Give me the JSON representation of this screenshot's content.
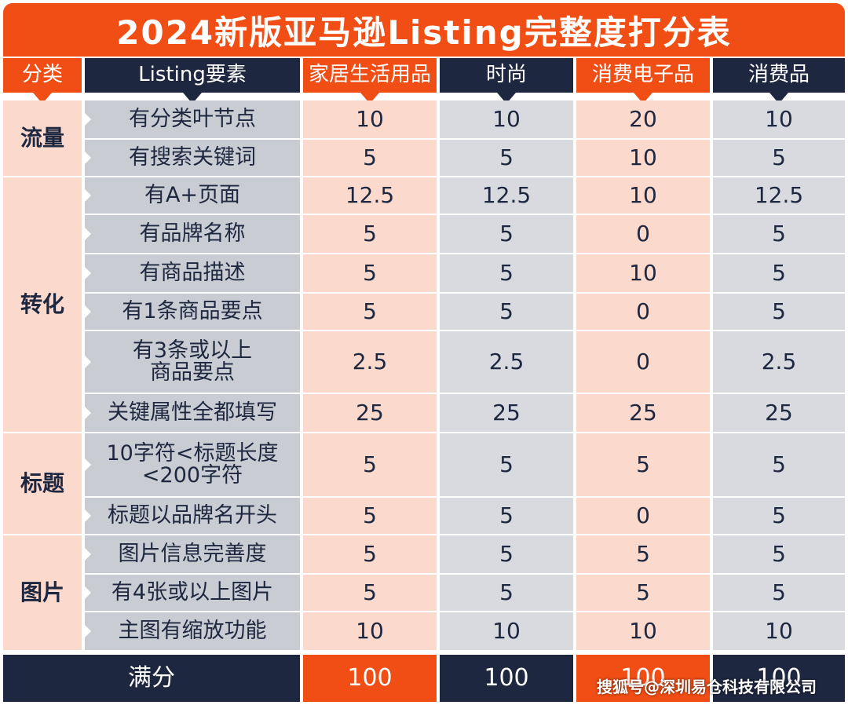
{
  "title": "2024新版亚马逊Listing完整度打分表",
  "headers": [
    "分类",
    "Listing要素",
    "家居生活用品",
    "时尚",
    "消费电子品",
    "消费品"
  ],
  "categories": [
    "流量",
    "转化",
    "标题",
    "图片"
  ],
  "rows": [
    {
      "element": "有分类叶节点",
      "values": [
        "10",
        "10",
        "20",
        "10"
      ]
    },
    {
      "element": "有搜索关键词",
      "values": [
        "5",
        "5",
        "10",
        "5"
      ]
    },
    {
      "element": "有A+页面",
      "values": [
        "12.5",
        "12.5",
        "10",
        "12.5"
      ]
    },
    {
      "element": "有品牌名称",
      "values": [
        "5",
        "5",
        "0",
        "5"
      ]
    },
    {
      "element": "有商品描述",
      "values": [
        "5",
        "5",
        "10",
        "5"
      ]
    },
    {
      "element": "有1条商品要点",
      "values": [
        "5",
        "5",
        "0",
        "5"
      ]
    },
    {
      "element": "有3条或以上\n商品要点",
      "values": [
        "2.5",
        "2.5",
        "0",
        "2.5"
      ]
    },
    {
      "element": "关键属性全都填写",
      "values": [
        "25",
        "25",
        "25",
        "25"
      ]
    },
    {
      "element": "10字符<标题长度\n<200字符",
      "values": [
        "5",
        "5",
        "5",
        "5"
      ]
    },
    {
      "element": "标题以品牌名开头",
      "values": [
        "5",
        "5",
        "0",
        "5"
      ]
    },
    {
      "element": "图片信息完善度",
      "values": [
        "5",
        "5",
        "5",
        "5"
      ]
    },
    {
      "element": "有4张或以上图片",
      "values": [
        "5",
        "5",
        "5",
        "5"
      ]
    },
    {
      "element": "主图有缩放功能",
      "values": [
        "10",
        "10",
        "10",
        "10"
      ]
    }
  ],
  "footer": {
    "label": "满分",
    "values": [
      "100",
      "100",
      "100",
      "100"
    ]
  },
  "watermark": "搜狐号@深圳易仓科技有限公司",
  "colors": {
    "orange": "#f04e14",
    "navy": "#1e2740",
    "pink": "#fbd9cd",
    "gray": "#d8dae0"
  }
}
